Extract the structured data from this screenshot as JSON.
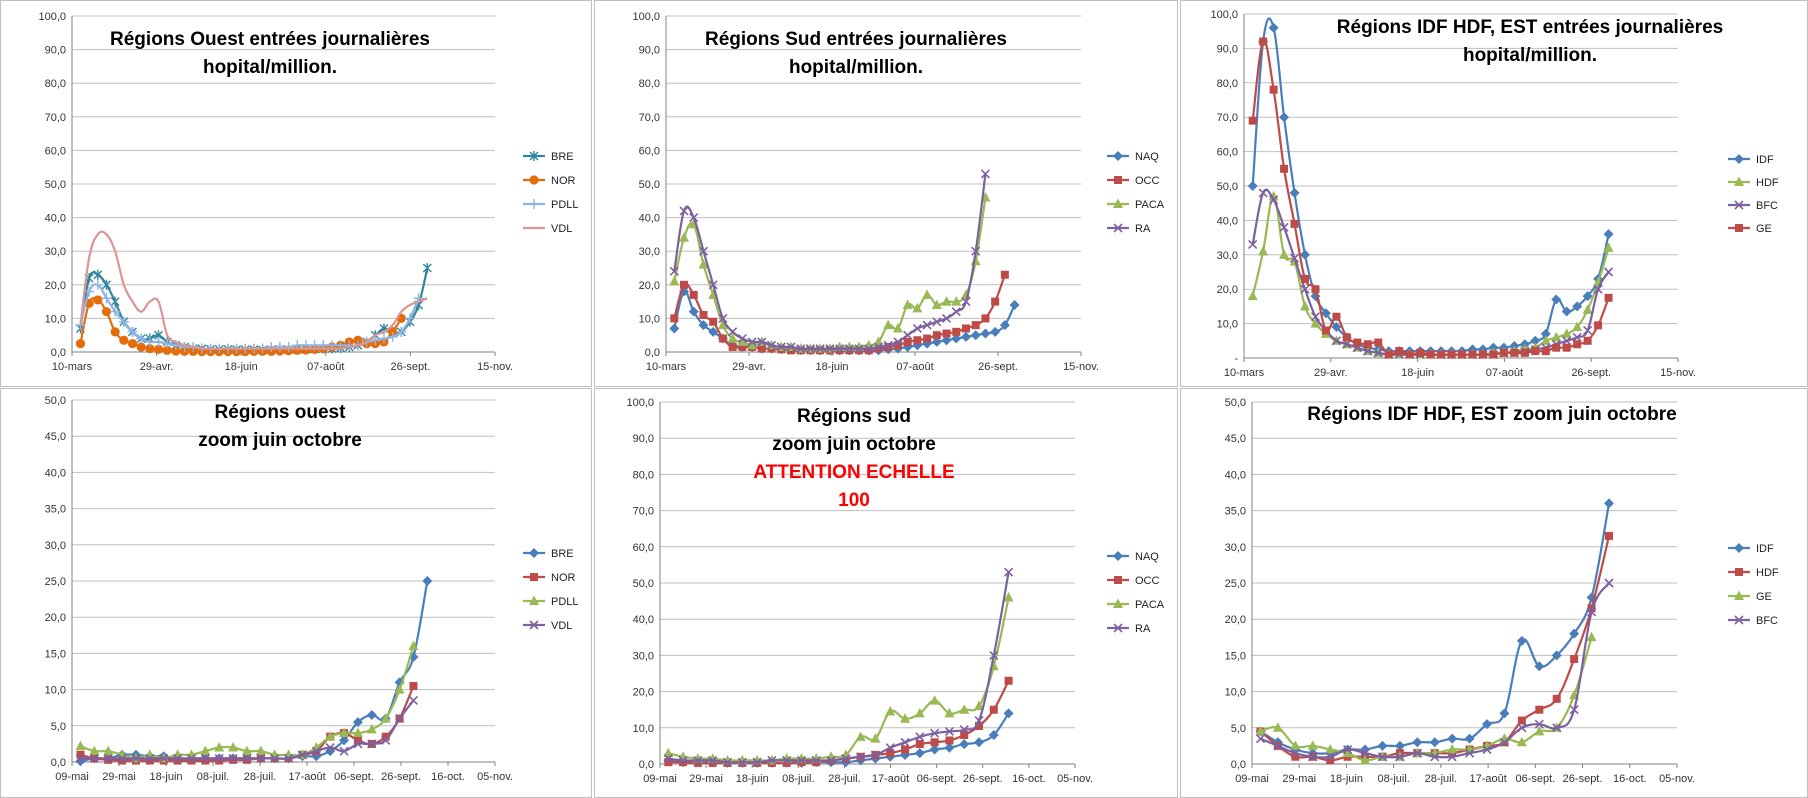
{
  "colors": {
    "BRE": "#4a7ebb",
    "NOR": "#be4b48",
    "PDLL": "#98b954",
    "VDL": "#7d60a0",
    "NAQ": "#4a7ebb",
    "OCC": "#be4b48",
    "PACA": "#98b954",
    "RA": "#7d60a0",
    "IDF": "#4a7ebb",
    "HDF": "#be4b48",
    "GE": "#98b954",
    "BFC": "#7d60a0",
    "t_BRE": "#31859c",
    "t_NOR": "#e46c0a",
    "t_PDLL": "#8eb4e3",
    "t_VDL": "#d99694",
    "t_IDF": "#4a7ebb",
    "t_HDF": "#98b954",
    "t_BFC": "#7d60a0",
    "t_GE": "#be4b48",
    "warning": "#ff0000",
    "grid": "#bfbfbf",
    "axis": "#808080",
    "border": "#bfbfbf"
  },
  "chart_data": [
    {
      "type": "line",
      "title_lines": [
        "Régions Ouest entrées journalières",
        "hopital/million."
      ],
      "x_tick_labels": [
        "10-mars",
        "29-avr.",
        "18-juin",
        "07-août",
        "26-sept.",
        "15-nov."
      ],
      "ylim": [
        0,
        100
      ],
      "y_tick_labels": [
        "0,0",
        "10,0",
        "20,0",
        "30,0",
        "40,0",
        "50,0",
        "60,0",
        "70,0",
        "80,0",
        "90,0",
        "100,0"
      ],
      "legend": "right",
      "grid": true,
      "series": [
        {
          "name": "BRE",
          "marker": "star",
          "values": [
            7,
            22,
            23,
            20,
            15,
            9,
            6,
            4,
            4,
            5,
            3,
            2,
            1.5,
            1,
            1,
            0.8,
            0.8,
            0.8,
            0.7,
            0.7,
            0.7,
            0.6,
            0.7,
            0.8,
            0.7,
            0.8,
            0.8,
            0.9,
            1,
            1,
            1.2,
            1.5,
            2,
            3,
            5,
            7,
            6,
            6,
            9,
            14,
            25
          ]
        },
        {
          "name": "NOR",
          "marker": "circle",
          "values": [
            2.5,
            14.5,
            15.5,
            12,
            6,
            3.5,
            2.5,
            1.5,
            1,
            0.8,
            0.5,
            0.3,
            0.2,
            0.2,
            0.1,
            0.1,
            0.1,
            0.1,
            0.1,
            0.1,
            0.2,
            0.2,
            0.2,
            0.3,
            0.4,
            0.5,
            0.6,
            0.8,
            1,
            1.5,
            2,
            3,
            3.5,
            2.5,
            2.5,
            3,
            6,
            10
          ]
        },
        {
          "name": "PDLL",
          "marker": "plus",
          "values": [
            8,
            18,
            20,
            16,
            12,
            9,
            6,
            4,
            3,
            3,
            2.5,
            2,
            1.5,
            1.5,
            1,
            1,
            1,
            1,
            1,
            1,
            1,
            1,
            1.5,
            1.5,
            1.5,
            2,
            2,
            2,
            2,
            2,
            2,
            2,
            2,
            3,
            3.5,
            4,
            4.5,
            6,
            10,
            16
          ]
        },
        {
          "name": "VDL",
          "marker": "none",
          "values": [
            8,
            28,
            35,
            35,
            30,
            20,
            15,
            12,
            15,
            15,
            5,
            3,
            2,
            1.5,
            1,
            1,
            1,
            1,
            1,
            1,
            1,
            1,
            1,
            1,
            1,
            1,
            1,
            1,
            1,
            1,
            1,
            1.5,
            2,
            3,
            5,
            6,
            8,
            12,
            14,
            15,
            16
          ]
        }
      ]
    },
    {
      "type": "line",
      "title_lines": [
        "Régions Sud entrées journalières",
        "hopital/million."
      ],
      "x_tick_labels": [
        "10-mars",
        "29-avr.",
        "18-juin",
        "07-août",
        "26-sept.",
        "15-nov."
      ],
      "ylim": [
        0,
        100
      ],
      "y_tick_labels": [
        "0,0",
        "10,0",
        "20,0",
        "30,0",
        "40,0",
        "50,0",
        "60,0",
        "70,0",
        "80,0",
        "90,0",
        "100,0"
      ],
      "legend": "right",
      "grid": true,
      "series": [
        {
          "name": "NAQ",
          "marker": "diamond",
          "values": [
            7,
            18,
            12,
            8,
            6,
            4,
            2,
            1.5,
            1.5,
            1,
            1,
            0.8,
            0.8,
            0.6,
            0.6,
            0.5,
            0.5,
            0.5,
            0.5,
            0.5,
            0.5,
            0.5,
            0.8,
            1,
            1.5,
            2,
            2.5,
            3,
            3.5,
            4,
            4.5,
            5,
            5.5,
            6,
            8,
            14
          ]
        },
        {
          "name": "OCC",
          "marker": "square",
          "values": [
            10,
            20,
            17,
            11,
            9,
            4,
            1.5,
            1.5,
            1.5,
            1,
            1,
            0.8,
            0.5,
            0.5,
            0.5,
            0.5,
            0.5,
            0.5,
            0.5,
            0.5,
            0.5,
            1,
            1.5,
            2,
            3,
            3.5,
            4,
            5,
            5.5,
            6,
            7,
            8,
            10,
            15,
            23
          ]
        },
        {
          "name": "PACA",
          "marker": "triangle",
          "values": [
            21,
            34,
            38,
            26,
            17,
            8,
            4,
            3,
            2,
            3,
            2,
            1.5,
            1.5,
            1,
            1,
            1,
            1,
            1.5,
            1.5,
            1.5,
            2,
            3,
            8,
            7,
            14,
            13,
            17,
            14,
            15,
            15,
            17,
            27,
            46
          ]
        },
        {
          "name": "RA",
          "marker": "x",
          "values": [
            24,
            42,
            40,
            30,
            20,
            10,
            6,
            4,
            3,
            3,
            2,
            1.5,
            1.5,
            1,
            1,
            1,
            1,
            1,
            1,
            1,
            1,
            1.5,
            2,
            3,
            5,
            7,
            8,
            9,
            10,
            12,
            15,
            30,
            53
          ]
        }
      ]
    },
    {
      "type": "line",
      "title_lines": [
        "Régions IDF HDF, EST entrées journalières",
        "hopital/million."
      ],
      "x_tick_labels": [
        "10-mars",
        "29-avr.",
        "18-juin",
        "07-août",
        "26-sept.",
        "15-nov."
      ],
      "ylim": [
        0,
        100
      ],
      "y_tick_labels": [
        "-",
        "10,0",
        "20,0",
        "30,0",
        "40,0",
        "50,0",
        "60,0",
        "70,0",
        "80,0",
        "90,0",
        "100,0"
      ],
      "legend": "right",
      "grid": true,
      "series": [
        {
          "name": "IDF",
          "marker": "diamond",
          "values": [
            50,
            92,
            96,
            70,
            48,
            30,
            18,
            13,
            9,
            6,
            4,
            3,
            2.5,
            2,
            2,
            2,
            2,
            2,
            2,
            2,
            2,
            2.5,
            2.5,
            3,
            3,
            3.5,
            4,
            5,
            7,
            17,
            13.5,
            15,
            18,
            23,
            36
          ]
        },
        {
          "name": "HDF",
          "marker": "triangle",
          "values": [
            18,
            31,
            47,
            30,
            28,
            15,
            10,
            7,
            5,
            4,
            3,
            2,
            1.5,
            1,
            1,
            1,
            1,
            1,
            1,
            1,
            1,
            1,
            1,
            1.5,
            1.5,
            2,
            2.5,
            3,
            5,
            6,
            7,
            9,
            14,
            22,
            32
          ]
        },
        {
          "name": "BFC",
          "marker": "x",
          "values": [
            33,
            48,
            46,
            38,
            29,
            20,
            12,
            8,
            5,
            4,
            3,
            2,
            1.5,
            1,
            1,
            1,
            1,
            1,
            1,
            1,
            1,
            1,
            1,
            1,
            1.5,
            1.5,
            2,
            2.5,
            3,
            4,
            5,
            6,
            8,
            20,
            25
          ]
        },
        {
          "name": "GE",
          "marker": "square",
          "values": [
            69,
            92,
            78,
            55,
            39,
            23,
            20,
            8,
            12,
            6,
            4.5,
            4,
            4.5,
            1,
            2,
            1,
            1.5,
            1,
            1,
            1,
            1,
            1,
            1,
            1,
            1.5,
            1.5,
            1.5,
            2,
            2,
            3,
            3,
            4,
            5,
            9.5,
            17.5
          ]
        }
      ]
    },
    {
      "type": "line",
      "title_lines": [
        "Régions ouest",
        "zoom juin octobre"
      ],
      "x_tick_labels": [
        "09-mai",
        "29-mai",
        "18-juin",
        "08-juil.",
        "28-juil.",
        "17-août",
        "06-sept.",
        "26-sept.",
        "16-oct.",
        "05-nov."
      ],
      "ylim": [
        0,
        50
      ],
      "y_tick_labels": [
        "0,0",
        "5,0",
        "10,0",
        "15,0",
        "20,0",
        "25,0",
        "30,0",
        "35,0",
        "40,0",
        "45,0",
        "50,0"
      ],
      "legend": "right",
      "grid": true,
      "series": [
        {
          "name": "BRE",
          "marker": "diamond",
          "values": [
            0.1,
            0.5,
            0.5,
            1,
            1,
            0.8,
            0.8,
            0.5,
            0.5,
            0.5,
            0.5,
            0.5,
            0.5,
            0.5,
            0.5,
            0.5,
            0.8,
            0.8,
            1.5,
            3,
            5.5,
            6.5,
            6,
            11,
            14.5,
            25
          ]
        },
        {
          "name": "NOR",
          "marker": "square",
          "values": [
            1,
            0.5,
            0.3,
            0.2,
            0.2,
            0.2,
            0.2,
            0.2,
            0.2,
            0.2,
            0.2,
            0.3,
            0.3,
            0.5,
            0.5,
            0.5,
            1,
            1.5,
            3.5,
            4,
            3,
            2.5,
            3.5,
            6,
            10.5
          ]
        },
        {
          "name": "PDLL",
          "marker": "triangle",
          "values": [
            2.2,
            1.5,
            1.5,
            1,
            0.5,
            1,
            0.5,
            1,
            1,
            1.5,
            2,
            2,
            1.5,
            1.5,
            1,
            1,
            1,
            2,
            3.5,
            4,
            4,
            4.5,
            6,
            10,
            16
          ]
        },
        {
          "name": "VDL",
          "marker": "x",
          "values": [
            0.5,
            0.5,
            0.5,
            0.5,
            0.5,
            0.5,
            0.5,
            0.5,
            0.5,
            0.5,
            0.5,
            0.5,
            0.5,
            0.5,
            0.5,
            0.5,
            1,
            1.5,
            2,
            1.5,
            2.5,
            2.5,
            3,
            6,
            8.5
          ]
        }
      ]
    },
    {
      "type": "line",
      "title_lines": [
        "Régions sud",
        "zoom juin octobre"
      ],
      "warning_lines": [
        "ATTENTION ECHELLE",
        "100"
      ],
      "x_tick_labels": [
        "09-mai",
        "29-mai",
        "18-juin",
        "08-juil.",
        "28-juil.",
        "17-août",
        "06-sept.",
        "26-sept.",
        "16-oct.",
        "05-nov."
      ],
      "ylim": [
        0,
        100
      ],
      "y_tick_labels": [
        "0,0",
        "10,0",
        "20,0",
        "30,0",
        "40,0",
        "50,0",
        "60,0",
        "70,0",
        "80,0",
        "90,0",
        "100,0"
      ],
      "legend": "right",
      "grid": true,
      "series": [
        {
          "name": "NAQ",
          "marker": "diamond",
          "values": [
            1,
            0.5,
            0.5,
            0.5,
            0.3,
            0.3,
            0.3,
            0.3,
            0.3,
            0.3,
            0.5,
            0.5,
            0.5,
            1,
            1.5,
            2,
            2.5,
            3,
            4,
            4.5,
            5.5,
            6,
            8,
            14
          ]
        },
        {
          "name": "OCC",
          "marker": "square",
          "values": [
            0.5,
            0.5,
            0.3,
            0.3,
            0.3,
            0.3,
            0.3,
            0.3,
            0.3,
            0.5,
            0.5,
            1,
            1.5,
            2,
            2.5,
            3,
            4,
            5.5,
            6,
            6.5,
            8,
            10.5,
            15,
            23
          ]
        },
        {
          "name": "PACA",
          "marker": "triangle",
          "values": [
            3,
            2,
            1.5,
            1.5,
            1,
            1,
            1,
            1,
            1.5,
            1.5,
            1.5,
            2,
            2.5,
            7.5,
            7,
            14.5,
            12.5,
            14,
            17.5,
            14,
            15,
            16,
            27,
            46
          ]
        },
        {
          "name": "RA",
          "marker": "x",
          "values": [
            1.5,
            1,
            1,
            1,
            0.5,
            0.5,
            0.5,
            1,
            1,
            1,
            1,
            1,
            1.5,
            2,
            2.5,
            4.5,
            6,
            7.5,
            8.5,
            9,
            9.5,
            12,
            30,
            53
          ]
        }
      ]
    },
    {
      "type": "line",
      "title_lines": [
        "Régions IDF HDF, EST  zoom juin octobre"
      ],
      "x_tick_labels": [
        "09-mai",
        "29-mai",
        "18-juin",
        "08-juil.",
        "28-juil.",
        "17-août",
        "06-sept.",
        "26-sept.",
        "16-oct.",
        "05-nov."
      ],
      "ylim": [
        0,
        50
      ],
      "y_tick_labels": [
        "0,0",
        "5,0",
        "10,0",
        "15,0",
        "20,0",
        "25,0",
        "30,0",
        "35,0",
        "40,0",
        "45,0",
        "50,0"
      ],
      "legend": "right",
      "grid": true,
      "series": [
        {
          "name": "IDF",
          "marker": "diamond",
          "values": [
            4.5,
            3,
            2,
            1.5,
            1.5,
            2,
            2,
            2.5,
            2.5,
            3,
            3,
            3.5,
            3.5,
            5.5,
            7,
            17,
            13.5,
            15,
            18,
            23,
            36
          ]
        },
        {
          "name": "HDF",
          "marker": "square",
          "values": [
            4.5,
            2.5,
            1,
            1,
            0.5,
            1,
            1,
            1,
            1.5,
            1.5,
            1.5,
            1.5,
            2,
            2.5,
            3,
            6,
            7.5,
            9,
            14.5,
            21.5,
            31.5
          ]
        },
        {
          "name": "GE",
          "marker": "triangle",
          "values": [
            4.5,
            5,
            2.5,
            2.5,
            2,
            1.5,
            0.5,
            1,
            1,
            1.5,
            1.5,
            2,
            2,
            2.5,
            3.5,
            3,
            4.5,
            5,
            9.5,
            17.5
          ]
        },
        {
          "name": "BFC",
          "marker": "x",
          "values": [
            3.5,
            2.5,
            1.5,
            1,
            1,
            2,
            1.5,
            1,
            1,
            1.5,
            1,
            1,
            1.5,
            2,
            3,
            5,
            5.5,
            5,
            7.5,
            21,
            25
          ]
        }
      ]
    }
  ]
}
